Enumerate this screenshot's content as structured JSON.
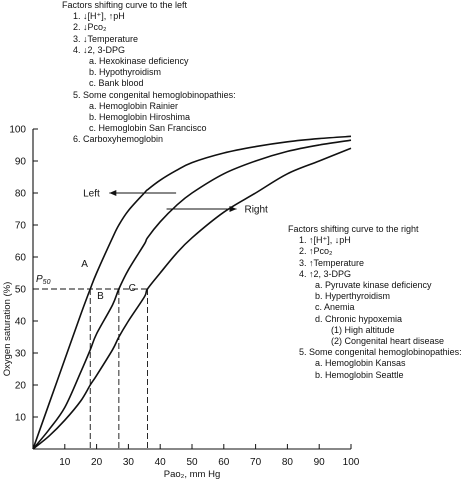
{
  "chart_data": {
    "type": "line",
    "title": "",
    "xlabel": "Pao₂, mm Hg",
    "ylabel": "Oxygen saturation (%)",
    "xlim": [
      0,
      100
    ],
    "ylim": [
      0,
      100
    ],
    "x_ticks": [
      10,
      20,
      30,
      40,
      50,
      60,
      70,
      80,
      90,
      100
    ],
    "y_ticks": [
      0,
      10,
      20,
      30,
      40,
      50,
      60,
      70,
      80,
      90,
      100
    ],
    "grid": false,
    "legend": "none",
    "x": [
      0,
      5,
      10,
      15,
      18,
      20,
      25,
      27,
      30,
      35,
      36,
      40,
      45,
      50,
      60,
      70,
      80,
      90,
      100
    ],
    "series": [
      {
        "name": "A",
        "values": [
          0,
          14,
          28,
          42,
          50,
          55,
          66,
          70,
          74.5,
          80,
          81,
          84,
          87,
          89.5,
          92.5,
          94.5,
          96,
          97,
          97.7
        ]
      },
      {
        "name": "B",
        "values": [
          0,
          6,
          13,
          24,
          31,
          36,
          45,
          50,
          56,
          64,
          66,
          71,
          76,
          80,
          86,
          90,
          93,
          95,
          96.5
        ]
      },
      {
        "name": "C",
        "values": [
          0,
          4,
          9,
          15,
          20,
          23,
          31,
          35,
          40,
          47.5,
          50,
          55,
          61,
          66,
          74,
          80,
          86,
          90,
          94
        ]
      }
    ],
    "p50": {
      "label": "P",
      "sub": "50",
      "y": 50,
      "x_values": [
        18,
        27,
        36
      ]
    },
    "annotations": {
      "left_label": "Left",
      "right_label": "Right"
    }
  },
  "left_factors": {
    "title": "Factors shifting curve to the left",
    "lines": [
      {
        "level": 1,
        "text": "1. ↓[H⁺], ↑pH"
      },
      {
        "level": 1,
        "text": "2. ↓Pco₂"
      },
      {
        "level": 1,
        "text": "3. ↓Temperature"
      },
      {
        "level": 1,
        "text": "4. ↓2, 3-DPG"
      },
      {
        "level": 2,
        "text": "a. Hexokinase deficiency"
      },
      {
        "level": 2,
        "text": "b. Hypothyroidism"
      },
      {
        "level": 2,
        "text": "c. Bank blood"
      },
      {
        "level": 1,
        "text": "5. Some congenital hemoglobinopathies:"
      },
      {
        "level": 2,
        "text": "a. Hemoglobin Rainier"
      },
      {
        "level": 2,
        "text": "b. Hemoglobin Hiroshima"
      },
      {
        "level": 2,
        "text": "c. Hemoglobin San Francisco"
      },
      {
        "level": 1,
        "text": "6. Carboxyhemoglobin"
      }
    ]
  },
  "right_factors": {
    "title": "Factors shifting curve to the right",
    "lines": [
      {
        "level": 1,
        "text": "1. ↑[H⁺], ↓pH"
      },
      {
        "level": 1,
        "text": "2. ↑Pco₂"
      },
      {
        "level": 1,
        "text": "3. ↑Temperature"
      },
      {
        "level": 1,
        "text": "4. ↑2, 3-DPG"
      },
      {
        "level": 2,
        "text": "a. Pyruvate kinase deficiency"
      },
      {
        "level": 2,
        "text": "b. Hyperthyroidism"
      },
      {
        "level": 2,
        "text": "c. Anemia"
      },
      {
        "level": 2,
        "text": "d. Chronic hypoxemia"
      },
      {
        "level": 3,
        "text": "(1) High altitude"
      },
      {
        "level": 3,
        "text": "(2) Congenital heart disease"
      },
      {
        "level": 1,
        "text": "5. Some congenital hemoglobinopathies:"
      },
      {
        "level": 2,
        "text": "a. Hemoglobin Kansas"
      },
      {
        "level": 2,
        "text": "b. Hemoglobin Seattle"
      }
    ]
  }
}
